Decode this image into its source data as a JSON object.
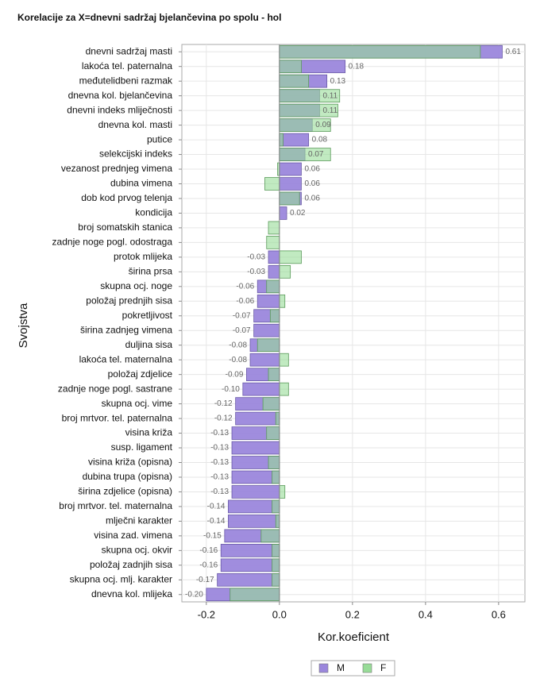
{
  "chart_data": {
    "type": "bar",
    "orientation": "horizontal",
    "title": "Korelacije za X=dnevni sadržaj bjelančevina po spolu - hol",
    "x_label": "Kor.koeficient",
    "y_label": "Svojstva",
    "categories": [
      "dnevni sadržaj masti",
      "lakoća tel. paternalna",
      "međutelidbeni razmak",
      "dnevna kol. bjelančevina",
      "dnevni indeks mliječnosti",
      "dnevna kol. masti",
      "putice",
      "selekcijski indeks",
      "vezanost prednjeg vimena",
      "dubina vimena",
      "dob kod prvog telenja",
      "kondicija",
      "broj somatskih stanica",
      "zadnje noge pogl. odostraga",
      "protok mlijeka",
      "širina prsa",
      "skupna ocj. noge",
      "položaj prednjih sisa",
      "pokretljivost",
      "širina zadnjeg vimena",
      "duljina sisa",
      "lakoća tel. maternalna",
      "položaj zdjelice",
      "zadnje noge pogl. sastrane",
      "skupna ocj. vime",
      "broj mrtvor. tel. paternalna",
      "visina križa",
      "susp. ligament",
      "visina križa (opisna)",
      "dubina trupa (opisna)",
      "širina zdjelice (opisna)",
      "broj mrtvor. tel. maternalna",
      "mlječni karakter",
      "visina zad. vimena",
      "skupna ocj. okvir",
      "položaj zadnjih sisa",
      "skupna ocj. mlj. karakter",
      "dnevna kol. mlijeka"
    ],
    "series": [
      {
        "name": "M",
        "color": "#9b87dc",
        "values": [
          0.61,
          0.18,
          0.13,
          0.11,
          0.11,
          0.09,
          0.08,
          0.07,
          0.06,
          0.06,
          0.06,
          0.02,
          0,
          0,
          -0.03,
          -0.03,
          -0.06,
          -0.06,
          -0.07,
          -0.07,
          -0.08,
          -0.08,
          -0.09,
          -0.1,
          -0.12,
          -0.12,
          -0.13,
          -0.13,
          -0.13,
          -0.13,
          -0.13,
          -0.14,
          -0.14,
          -0.15,
          -0.16,
          -0.16,
          -0.17,
          -0.2
        ],
        "value_labels": [
          "0.61",
          "0.18",
          "0.13",
          "0.11",
          "0.11",
          "0.09",
          "0.08",
          "0.07",
          "0.06",
          "0.06",
          "0.06",
          "0.02",
          null,
          null,
          "-0.03",
          "-0.03",
          "-0.06",
          "-0.06",
          "-0.07",
          "-0.07",
          "-0.08",
          "-0.08",
          "-0.09",
          "-0.10",
          "-0.12",
          "-0.12",
          "-0.13",
          "-0.13",
          "-0.13",
          "-0.13",
          "-0.13",
          "-0.14",
          "-0.14",
          "-0.15",
          "-0.16",
          "-0.16",
          "-0.17",
          "-0.20"
        ]
      },
      {
        "name": "F",
        "color": "#98dc98",
        "values": [
          0.55,
          0.06,
          0.08,
          0.165,
          0.16,
          0.14,
          0.01,
          0.14,
          -0.005,
          -0.04,
          0.055,
          0,
          -0.03,
          -0.035,
          0.06,
          0.03,
          -0.035,
          0.015,
          -0.025,
          0,
          -0.06,
          0.025,
          -0.03,
          0.025,
          -0.045,
          -0.01,
          -0.035,
          0,
          -0.03,
          -0.02,
          0.015,
          -0.02,
          -0.01,
          -0.05,
          -0.02,
          -0.02,
          -0.02,
          -0.135
        ]
      }
    ],
    "xlim": [
      -0.267,
      0.672
    ],
    "xticks": [
      -0.2,
      {
        "value": 0,
        "label": "0.0"
      },
      0.2,
      0.4,
      0.6
    ],
    "grid": true,
    "legend": "bottom"
  }
}
